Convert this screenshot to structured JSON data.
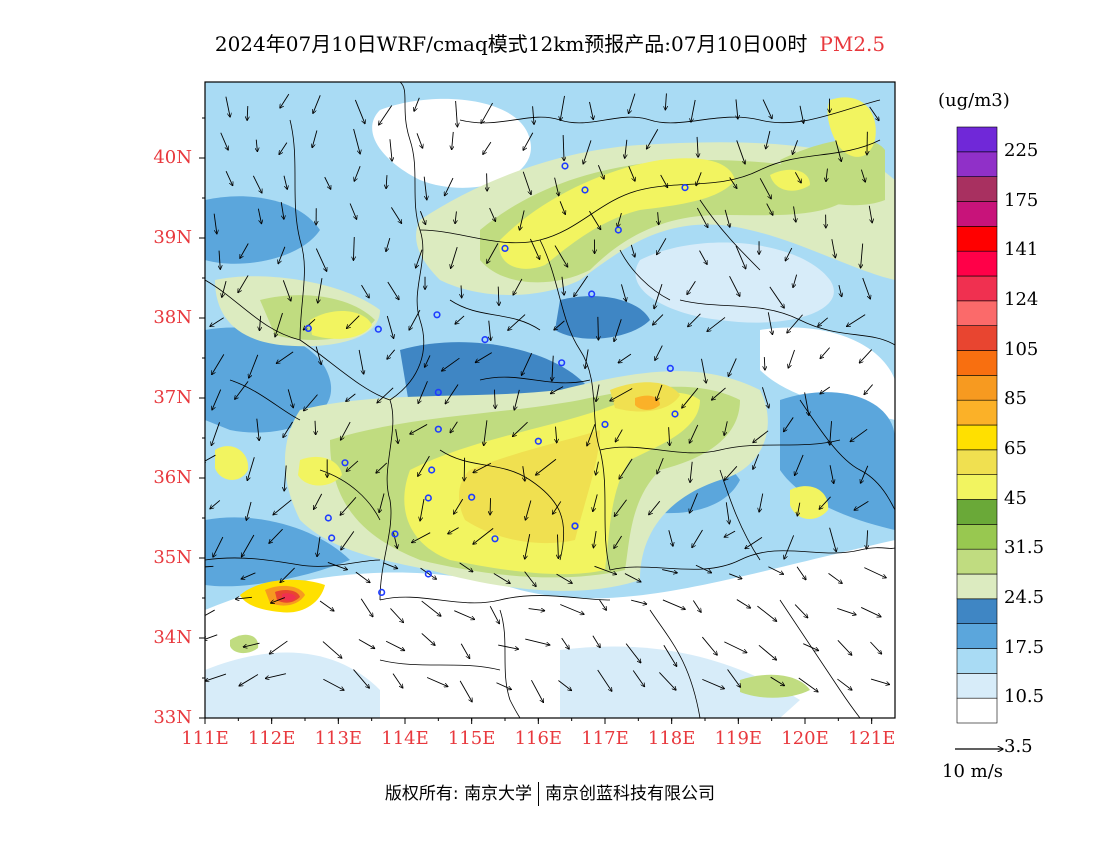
{
  "title": {
    "main": "2024年07月10日WRF/cmaq模式12km预报产品:07月10日00时",
    "pollutant": "PM2.5"
  },
  "map": {
    "lat_labels": [
      "40N",
      "39N",
      "38N",
      "37N",
      "36N",
      "35N",
      "34N",
      "33N"
    ],
    "lon_labels": [
      "111E",
      "112E",
      "113E",
      "114E",
      "115E",
      "116E",
      "117E",
      "118E",
      "119E",
      "120E",
      "121E"
    ],
    "lat_range": [
      33,
      40.95
    ],
    "lon_range": [
      111,
      121.35
    ],
    "station_icon": "station-marker-icon",
    "wind_vector_icon": "wind-arrow-icon"
  },
  "legend": {
    "unit": "(ug/m3)",
    "labels": [
      "225",
      "175",
      "141",
      "124",
      "105",
      "85",
      "65",
      "45",
      "31.5",
      "24.5",
      "17.5",
      "10.5",
      "3.5"
    ],
    "colors_bottom_to_top": [
      "#ffffff",
      "#d7ecf9",
      "#a9dbf4",
      "#5ba6dc",
      "#3f86c4",
      "#dcebc0",
      "#c0dc80",
      "#98c850",
      "#6aa938",
      "#f2f460",
      "#f0e050",
      "#ffe000",
      "#fbb128",
      "#f79a20",
      "#f86f10",
      "#e84530",
      "#fb6a6a",
      "#f03050",
      "#ff0048",
      "#ff0000",
      "#c8137a",
      "#a83060",
      "#9030c8",
      "#7028d8"
    ]
  },
  "wind_reference": {
    "label": "10 m/s"
  },
  "footer": {
    "copyright_prefix": "版权所有:",
    "org1": "南京大学",
    "org2": "南京创蓝科技有限公司"
  },
  "colors": {
    "axis_label": "#e8383d",
    "highlight": "#e8383d",
    "station": "#1e3cff"
  }
}
